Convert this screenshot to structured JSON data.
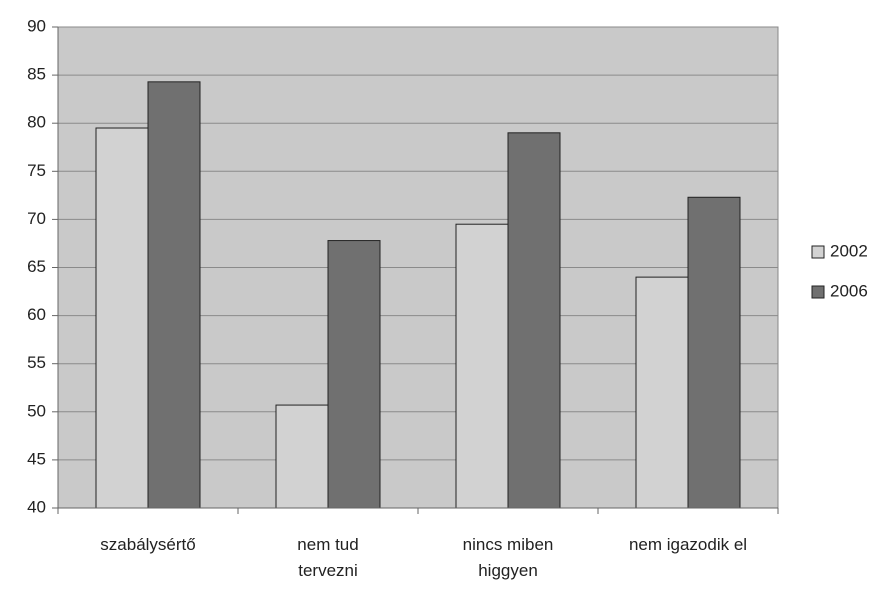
{
  "chart_data": {
    "type": "bar",
    "categories": [
      "szabálysértő",
      "nem tud\ntervezni",
      "nincs miben\nhiggyen",
      "nem igazodik el"
    ],
    "series": [
      {
        "name": "2002",
        "color": "#d2d2d2",
        "values": [
          79.5,
          50.7,
          69.5,
          64
        ]
      },
      {
        "name": "2006",
        "color": "#707070",
        "values": [
          84.3,
          67.8,
          79,
          72.3
        ]
      }
    ],
    "ylim": [
      40,
      90
    ],
    "yticks": [
      40,
      45,
      50,
      55,
      60,
      65,
      70,
      75,
      80,
      85,
      90
    ],
    "grid": true,
    "legend": "right"
  }
}
